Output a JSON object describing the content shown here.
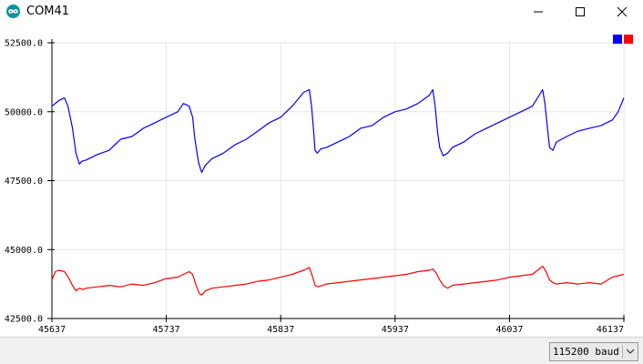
{
  "window": {
    "title": "COM41",
    "icon": "arduino-infinity-icon",
    "controls": [
      "minimize-icon",
      "maximize-icon",
      "close-icon"
    ]
  },
  "footer": {
    "baud_value": "115200 baud",
    "dropdown_icon": "chevron-down-icon"
  },
  "chart_data": {
    "type": "line",
    "title": "",
    "xlabel": "",
    "ylabel": "",
    "xlim": [
      45637,
      46137
    ],
    "ylim": [
      42500,
      52500
    ],
    "x_ticks": [
      "45637",
      "45737",
      "45837",
      "45937",
      "46037",
      "46137"
    ],
    "y_ticks": [
      "42500.0",
      "45000.0",
      "47500.0",
      "50000.0",
      "52500.0"
    ],
    "grid": true,
    "legend_position": "top-right",
    "series": [
      {
        "color": "#0000ff",
        "x": [
          45637,
          45643,
          45648,
          45651,
          45655,
          45658,
          45661,
          45663,
          45667,
          45677,
          45687,
          45697,
          45707,
          45717,
          45727,
          45737,
          45747,
          45752,
          45757,
          45760,
          45762,
          45765,
          45767,
          45768,
          45771,
          45777,
          45787,
          45797,
          45807,
          45817,
          45827,
          45837,
          45847,
          45857,
          45862,
          45864,
          45866,
          45867,
          45869,
          45872,
          45877,
          45887,
          45897,
          45907,
          45917,
          45927,
          45937,
          45947,
          45957,
          45967,
          45970,
          45972,
          45974,
          45976,
          45979,
          45983,
          45987,
          45997,
          46007,
          46017,
          46027,
          46037,
          46047,
          46057,
          46063,
          46066,
          46068,
          46070,
          46072,
          46075,
          46078,
          46087,
          46097,
          46107,
          46117,
          46127,
          46132,
          46137
        ],
        "values": [
          50200,
          50400,
          50500,
          50200,
          49400,
          48500,
          48100,
          48200,
          48250,
          48450,
          48600,
          49000,
          49100,
          49400,
          49600,
          49800,
          50000,
          50300,
          50200,
          49800,
          49000,
          48200,
          47900,
          47800,
          48050,
          48300,
          48500,
          48800,
          49000,
          49300,
          49600,
          49800,
          50200,
          50700,
          50800,
          50200,
          49200,
          48600,
          48500,
          48650,
          48700,
          48900,
          49100,
          49400,
          49500,
          49800,
          50000,
          50100,
          50300,
          50600,
          50800,
          50200,
          49300,
          48700,
          48400,
          48500,
          48700,
          48900,
          49200,
          49400,
          49600,
          49800,
          50000,
          50200,
          50600,
          50800,
          50300,
          49500,
          48700,
          48600,
          48900,
          49100,
          49300,
          49400,
          49500,
          49700,
          50000,
          50500
        ]
      },
      {
        "color": "#ff0000",
        "x": [
          45637,
          45640,
          45643,
          45648,
          45652,
          45655,
          45658,
          45661,
          45664,
          45667,
          45677,
          45687,
          45697,
          45707,
          45717,
          45727,
          45737,
          45747,
          45752,
          45757,
          45760,
          45763,
          45766,
          45768,
          45771,
          45777,
          45787,
          45797,
          45807,
          45817,
          45827,
          45837,
          45847,
          45857,
          45862,
          45865,
          45867,
          45870,
          45877,
          45887,
          45897,
          45907,
          45917,
          45927,
          45937,
          45947,
          45957,
          45967,
          45970,
          45973,
          45976,
          45979,
          45983,
          45987,
          45997,
          46007,
          46017,
          46027,
          46037,
          46047,
          46057,
          46063,
          46066,
          46069,
          46072,
          46075,
          46078,
          46087,
          46097,
          46107,
          46117,
          46127,
          46132,
          46137
        ],
        "values": [
          43900,
          44200,
          44250,
          44200,
          43950,
          43700,
          43500,
          43600,
          43550,
          43600,
          43650,
          43700,
          43650,
          43750,
          43700,
          43800,
          43950,
          44000,
          44100,
          44200,
          44100,
          43700,
          43400,
          43350,
          43500,
          43600,
          43650,
          43700,
          43750,
          43850,
          43900,
          44000,
          44100,
          44250,
          44350,
          44000,
          43700,
          43650,
          43750,
          43800,
          43850,
          43900,
          43950,
          44000,
          44050,
          44100,
          44200,
          44250,
          44300,
          44150,
          43900,
          43700,
          43600,
          43700,
          43750,
          43800,
          43850,
          43900,
          44000,
          44050,
          44100,
          44300,
          44400,
          44200,
          43900,
          43800,
          43750,
          43800,
          43750,
          43800,
          43750,
          44000,
          44050,
          44100
        ]
      }
    ]
  }
}
